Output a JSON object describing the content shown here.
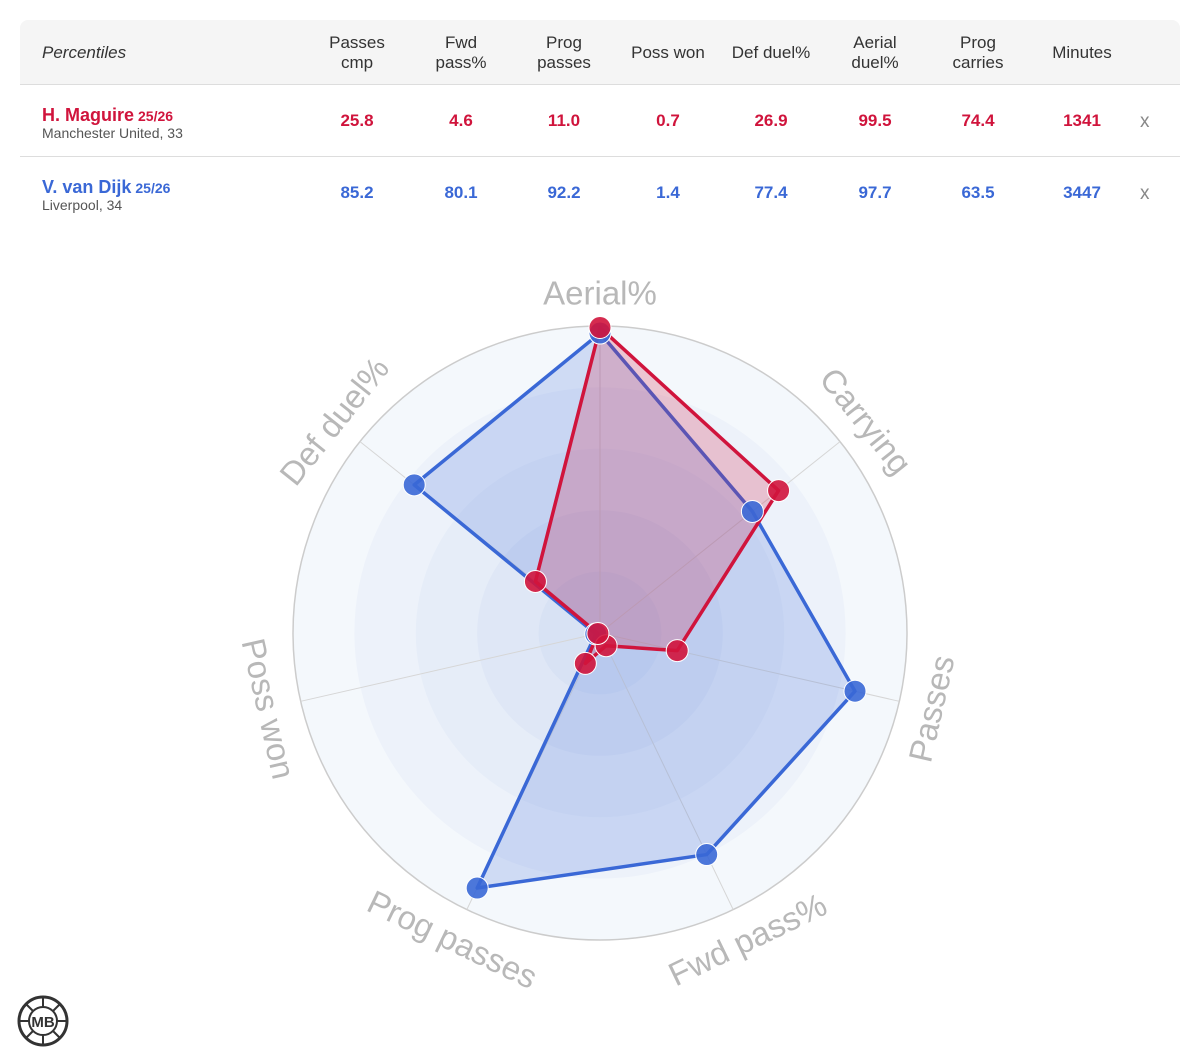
{
  "table": {
    "title": "Percentiles",
    "columns": [
      "Passes\ncmp",
      "Fwd\npass%",
      "Prog\npasses",
      "Poss won",
      "Def duel%",
      "Aerial\nduel%",
      "Prog\ncarries",
      "Minutes"
    ],
    "remove_label": "x",
    "players": [
      {
        "name": "H. Maguire",
        "season": "25/26",
        "club": "Manchester United, 33",
        "values": [
          "25.8",
          "4.6",
          "11.0",
          "0.7",
          "26.9",
          "99.5",
          "74.4",
          "1341"
        ]
      },
      {
        "name": "V. van Dijk",
        "season": "25/26",
        "club": "Liverpool, 34",
        "values": [
          "85.2",
          "80.1",
          "92.2",
          "1.4",
          "77.4",
          "97.7",
          "63.5",
          "3447"
        ]
      }
    ]
  },
  "colors": {
    "maguire": "#d0143c",
    "van_dijk": "#3a68d6",
    "axis_label": "#b8b8b8",
    "grid": "#cccccc"
  },
  "chart_data": {
    "type": "radar",
    "axes": [
      "Aerial%",
      "Carrying",
      "Passes",
      "Fwd pass%",
      "Prog passes",
      "Poss won",
      "Def duel%"
    ],
    "range": [
      0,
      100
    ],
    "series": [
      {
        "name": "H. Maguire",
        "values": [
          99.5,
          74.4,
          25.8,
          4.6,
          11.0,
          0.7,
          26.9
        ]
      },
      {
        "name": "V. van Dijk",
        "values": [
          97.7,
          63.5,
          85.2,
          80.1,
          92.2,
          1.4,
          77.4
        ]
      }
    ]
  },
  "logo": {
    "text": "MB"
  }
}
